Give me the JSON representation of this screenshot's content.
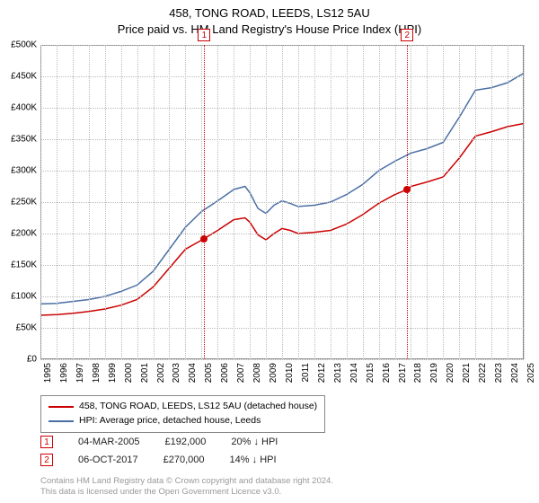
{
  "title": {
    "line1": "458, TONG ROAD, LEEDS, LS12 5AU",
    "line2": "Price paid vs. HM Land Registry's House Price Index (HPI)"
  },
  "chart": {
    "type": "line",
    "x_year_min": 1995,
    "x_year_max": 2025,
    "ylim": [
      0,
      500000
    ],
    "ytick_step": 50000,
    "yticks": [
      "£0",
      "£50K",
      "£100K",
      "£150K",
      "£200K",
      "£250K",
      "£300K",
      "£350K",
      "£400K",
      "£450K",
      "£500K"
    ],
    "xticks_years": [
      1995,
      1996,
      1997,
      1998,
      1999,
      2000,
      2001,
      2002,
      2003,
      2004,
      2005,
      2006,
      2007,
      2008,
      2009,
      2010,
      2011,
      2012,
      2013,
      2014,
      2015,
      2016,
      2017,
      2018,
      2019,
      2020,
      2021,
      2022,
      2023,
      2024,
      2025
    ],
    "background_color": "#ffffff",
    "grid_color": "#bbbbbb",
    "band": {
      "start_year": 2005.17,
      "end_year": 2017.77,
      "color": "#dde4ee"
    },
    "series": {
      "property": {
        "color": "#cc0000",
        "width": 1.5,
        "label": "458, TONG ROAD, LEEDS, LS12 5AU (detached house)",
        "points_year_value": [
          [
            1995.0,
            70000
          ],
          [
            1996.0,
            71000
          ],
          [
            1997.0,
            73000
          ],
          [
            1998.0,
            76000
          ],
          [
            1999.0,
            80000
          ],
          [
            2000.0,
            86000
          ],
          [
            2001.0,
            95000
          ],
          [
            2002.0,
            115000
          ],
          [
            2003.0,
            145000
          ],
          [
            2004.0,
            175000
          ],
          [
            2005.17,
            192000
          ],
          [
            2006.0,
            205000
          ],
          [
            2007.0,
            222000
          ],
          [
            2007.7,
            225000
          ],
          [
            2008.0,
            218000
          ],
          [
            2008.5,
            198000
          ],
          [
            2009.0,
            190000
          ],
          [
            2009.5,
            200000
          ],
          [
            2010.0,
            208000
          ],
          [
            2010.5,
            205000
          ],
          [
            2011.0,
            200000
          ],
          [
            2012.0,
            202000
          ],
          [
            2013.0,
            205000
          ],
          [
            2014.0,
            215000
          ],
          [
            2015.0,
            230000
          ],
          [
            2016.0,
            248000
          ],
          [
            2017.0,
            262000
          ],
          [
            2017.77,
            270000
          ],
          [
            2018.0,
            275000
          ],
          [
            2019.0,
            282000
          ],
          [
            2020.0,
            290000
          ],
          [
            2021.0,
            320000
          ],
          [
            2022.0,
            355000
          ],
          [
            2023.0,
            362000
          ],
          [
            2024.0,
            370000
          ],
          [
            2025.0,
            375000
          ]
        ]
      },
      "hpi": {
        "color": "#4a6fa5",
        "width": 1.5,
        "label": "HPI: Average price, detached house, Leeds",
        "points_year_value": [
          [
            1995.0,
            88000
          ],
          [
            1996.0,
            89000
          ],
          [
            1997.0,
            92000
          ],
          [
            1998.0,
            95000
          ],
          [
            1999.0,
            100000
          ],
          [
            2000.0,
            108000
          ],
          [
            2001.0,
            118000
          ],
          [
            2002.0,
            140000
          ],
          [
            2003.0,
            175000
          ],
          [
            2004.0,
            210000
          ],
          [
            2005.0,
            235000
          ],
          [
            2006.0,
            252000
          ],
          [
            2007.0,
            270000
          ],
          [
            2007.7,
            275000
          ],
          [
            2008.0,
            265000
          ],
          [
            2008.5,
            240000
          ],
          [
            2009.0,
            232000
          ],
          [
            2009.5,
            245000
          ],
          [
            2010.0,
            252000
          ],
          [
            2010.5,
            248000
          ],
          [
            2011.0,
            243000
          ],
          [
            2012.0,
            245000
          ],
          [
            2013.0,
            250000
          ],
          [
            2014.0,
            262000
          ],
          [
            2015.0,
            278000
          ],
          [
            2016.0,
            300000
          ],
          [
            2017.0,
            315000
          ],
          [
            2018.0,
            328000
          ],
          [
            2019.0,
            335000
          ],
          [
            2020.0,
            345000
          ],
          [
            2021.0,
            385000
          ],
          [
            2022.0,
            428000
          ],
          [
            2023.0,
            432000
          ],
          [
            2024.0,
            440000
          ],
          [
            2025.0,
            455000
          ]
        ]
      }
    },
    "sale_markers": [
      {
        "n": "1",
        "year": 2005.17,
        "value": 192000
      },
      {
        "n": "2",
        "year": 2017.77,
        "value": 270000
      }
    ]
  },
  "sales": [
    {
      "n": "1",
      "date": "04-MAR-2005",
      "price": "£192,000",
      "delta": "20%",
      "delta_dir": "down",
      "vs": "HPI"
    },
    {
      "n": "2",
      "date": "06-OCT-2017",
      "price": "£270,000",
      "delta": "14%",
      "delta_dir": "down",
      "vs": "HPI"
    }
  ],
  "footer": {
    "line1": "Contains HM Land Registry data © Crown copyright and database right 2024.",
    "line2": "This data is licensed under the Open Government Licence v3.0."
  }
}
